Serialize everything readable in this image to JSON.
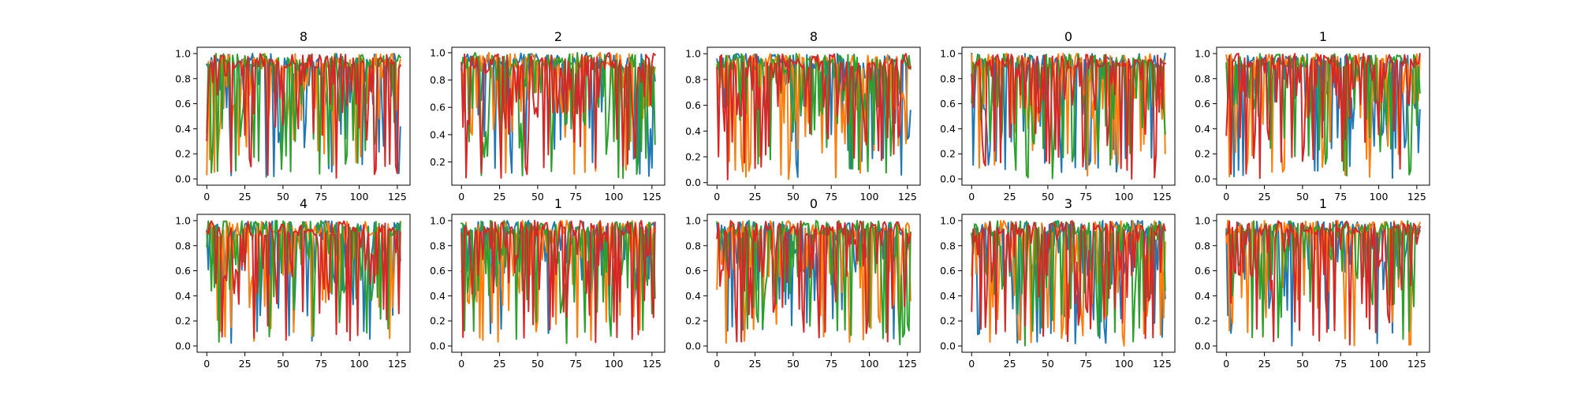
{
  "figure": {
    "background": "#ffffff"
  },
  "chart_data": [
    {
      "type": "line",
      "title": "8",
      "xlim": [
        -6.35,
        133.35
      ],
      "ylim": [
        -0.05,
        1.05
      ],
      "xticks": [
        0,
        25,
        50,
        75,
        100,
        125
      ],
      "xtick_labels": [
        "0",
        "25",
        "50",
        "75",
        "100",
        "125"
      ],
      "yticks": [
        0.0,
        0.2,
        0.4,
        0.6,
        0.8,
        1.0
      ],
      "ytick_labels": [
        "0.0",
        "0.2",
        "0.4",
        "0.6",
        "0.8",
        "1.0"
      ],
      "n_points": 128,
      "n_series": 4,
      "seed": 11,
      "min_value": 0.0
    },
    {
      "type": "line",
      "title": "2",
      "xlim": [
        -6.35,
        133.35
      ],
      "ylim": [
        0.03,
        1.04
      ],
      "xticks": [
        0,
        25,
        50,
        75,
        100,
        125
      ],
      "xtick_labels": [
        "0",
        "25",
        "50",
        "75",
        "100",
        "125"
      ],
      "yticks": [
        0.2,
        0.4,
        0.6,
        0.8,
        1.0
      ],
      "ytick_labels": [
        "0.2",
        "0.4",
        "0.6",
        "0.8",
        "1.0"
      ],
      "n_points": 128,
      "n_series": 4,
      "seed": 23,
      "min_value": 0.08
    },
    {
      "type": "line",
      "title": "8",
      "xlim": [
        -6.35,
        133.35
      ],
      "ylim": [
        -0.02,
        1.05
      ],
      "xticks": [
        0,
        25,
        50,
        75,
        100,
        125
      ],
      "xtick_labels": [
        "0",
        "25",
        "50",
        "75",
        "100",
        "125"
      ],
      "yticks": [
        0.0,
        0.2,
        0.4,
        0.6,
        0.8,
        1.0
      ],
      "ytick_labels": [
        "0.0",
        "0.2",
        "0.4",
        "0.6",
        "0.8",
        "1.0"
      ],
      "n_points": 128,
      "n_series": 4,
      "seed": 37,
      "min_value": 0.02
    },
    {
      "type": "line",
      "title": "0",
      "xlim": [
        -6.35,
        133.35
      ],
      "ylim": [
        -0.05,
        1.05
      ],
      "xticks": [
        0,
        25,
        50,
        75,
        100,
        125
      ],
      "xtick_labels": [
        "0",
        "25",
        "50",
        "75",
        "100",
        "125"
      ],
      "yticks": [
        0.0,
        0.2,
        0.4,
        0.6,
        0.8,
        1.0
      ],
      "ytick_labels": [
        "0.0",
        "0.2",
        "0.4",
        "0.6",
        "0.8",
        "1.0"
      ],
      "n_points": 128,
      "n_series": 4,
      "seed": 41,
      "min_value": 0.0
    },
    {
      "type": "line",
      "title": "1",
      "xlim": [
        -6.35,
        133.35
      ],
      "ylim": [
        -0.05,
        1.05
      ],
      "xticks": [
        0,
        25,
        50,
        75,
        100,
        125
      ],
      "xtick_labels": [
        "0",
        "25",
        "50",
        "75",
        "100",
        "125"
      ],
      "yticks": [
        0.0,
        0.2,
        0.4,
        0.6,
        0.8,
        1.0
      ],
      "ytick_labels": [
        "0.0",
        "0.2",
        "0.4",
        "0.6",
        "0.8",
        "1.0"
      ],
      "n_points": 128,
      "n_series": 4,
      "seed": 53,
      "min_value": 0.0
    },
    {
      "type": "line",
      "title": "4",
      "xlim": [
        -6.35,
        133.35
      ],
      "ylim": [
        -0.05,
        1.05
      ],
      "xticks": [
        0,
        25,
        50,
        75,
        100,
        125
      ],
      "xtick_labels": [
        "0",
        "25",
        "50",
        "75",
        "100",
        "125"
      ],
      "yticks": [
        0.0,
        0.2,
        0.4,
        0.6,
        0.8,
        1.0
      ],
      "ytick_labels": [
        "0.0",
        "0.2",
        "0.4",
        "0.6",
        "0.8",
        "1.0"
      ],
      "n_points": 128,
      "n_series": 4,
      "seed": 67,
      "min_value": 0.02
    },
    {
      "type": "line",
      "title": "1",
      "xlim": [
        -6.35,
        133.35
      ],
      "ylim": [
        -0.05,
        1.05
      ],
      "xticks": [
        0,
        25,
        50,
        75,
        100,
        125
      ],
      "xtick_labels": [
        "0",
        "25",
        "50",
        "75",
        "100",
        "125"
      ],
      "yticks": [
        0.0,
        0.2,
        0.4,
        0.6,
        0.8,
        1.0
      ],
      "ytick_labels": [
        "0.0",
        "0.2",
        "0.4",
        "0.6",
        "0.8",
        "1.0"
      ],
      "n_points": 128,
      "n_series": 4,
      "seed": 79,
      "min_value": 0.02
    },
    {
      "type": "line",
      "title": "0",
      "xlim": [
        -6.35,
        133.35
      ],
      "ylim": [
        -0.05,
        1.05
      ],
      "xticks": [
        0,
        25,
        50,
        75,
        100,
        125
      ],
      "xtick_labels": [
        "0",
        "25",
        "50",
        "75",
        "100",
        "125"
      ],
      "yticks": [
        0.0,
        0.2,
        0.4,
        0.6,
        0.8,
        1.0
      ],
      "ytick_labels": [
        "0.0",
        "0.2",
        "0.4",
        "0.6",
        "0.8",
        "1.0"
      ],
      "n_points": 128,
      "n_series": 4,
      "seed": 83,
      "min_value": 0.0
    },
    {
      "type": "line",
      "title": "3",
      "xlim": [
        -6.35,
        133.35
      ],
      "ylim": [
        -0.05,
        1.05
      ],
      "xticks": [
        0,
        25,
        50,
        75,
        100,
        125
      ],
      "xtick_labels": [
        "0",
        "25",
        "50",
        "75",
        "100",
        "125"
      ],
      "yticks": [
        0.0,
        0.2,
        0.4,
        0.6,
        0.8,
        1.0
      ],
      "ytick_labels": [
        "0.0",
        "0.2",
        "0.4",
        "0.6",
        "0.8",
        "1.0"
      ],
      "n_points": 128,
      "n_series": 4,
      "seed": 97,
      "min_value": 0.0
    },
    {
      "type": "line",
      "title": "1",
      "xlim": [
        -6.35,
        133.35
      ],
      "ylim": [
        -0.05,
        1.05
      ],
      "xticks": [
        0,
        25,
        50,
        75,
        100,
        125
      ],
      "xtick_labels": [
        "0",
        "25",
        "50",
        "75",
        "100",
        "125"
      ],
      "yticks": [
        0.0,
        0.2,
        0.4,
        0.6,
        0.8,
        1.0
      ],
      "ytick_labels": [
        "0.0",
        "0.2",
        "0.4",
        "0.6",
        "0.8",
        "1.0"
      ],
      "n_points": 128,
      "n_series": 4,
      "seed": 101,
      "min_value": 0.0
    }
  ],
  "series_colors": [
    "#1f77b4",
    "#ff7f0e",
    "#2ca02c",
    "#d62728"
  ],
  "axis_color": "#000000",
  "grid": false,
  "legend": "none"
}
